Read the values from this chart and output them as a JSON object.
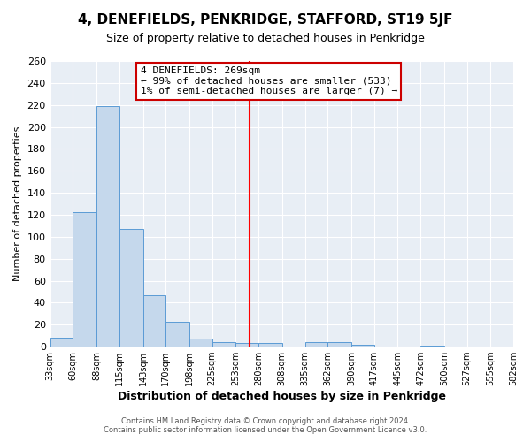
{
  "title": "4, DENEFIELDS, PENKRIDGE, STAFFORD, ST19 5JF",
  "subtitle": "Size of property relative to detached houses in Penkridge",
  "xlabel": "Distribution of detached houses by size in Penkridge",
  "ylabel": "Number of detached properties",
  "bar_vals_full": [
    8,
    122,
    219,
    107,
    47,
    23,
    7,
    4,
    3,
    3,
    0,
    4,
    4,
    2,
    0,
    0,
    1,
    0,
    0,
    0
  ],
  "bin_edges": [
    33,
    60,
    88,
    115,
    143,
    170,
    198,
    225,
    253,
    280,
    308,
    335,
    362,
    390,
    417,
    445,
    472,
    500,
    527,
    555,
    582
  ],
  "tick_labels": [
    "33sqm",
    "60sqm",
    "88sqm",
    "115sqm",
    "143sqm",
    "170sqm",
    "198sqm",
    "225sqm",
    "253sqm",
    "280sqm",
    "308sqm",
    "335sqm",
    "362sqm",
    "390sqm",
    "417sqm",
    "445sqm",
    "472sqm",
    "500sqm",
    "527sqm",
    "555sqm",
    "582sqm"
  ],
  "bar_color": "#c5d8ec",
  "bar_edge_color": "#5b9bd5",
  "red_line_x": 269,
  "ylim": [
    0,
    260
  ],
  "yticks": [
    0,
    20,
    40,
    60,
    80,
    100,
    120,
    140,
    160,
    180,
    200,
    220,
    240,
    260
  ],
  "annotation_title": "4 DENEFIELDS: 269sqm",
  "annotation_line1": "← 99% of detached houses are smaller (533)",
  "annotation_line2": "1% of semi-detached houses are larger (7) →",
  "footnote1": "Contains HM Land Registry data © Crown copyright and database right 2024.",
  "footnote2": "Contains public sector information licensed under the Open Government Licence v3.0.",
  "fig_bg_color": "#ffffff",
  "plot_bg_color": "#e8eef5",
  "grid_color": "#ffffff",
  "annotation_box_color": "#ffffff",
  "annotation_border_color": "#cc0000",
  "title_fontsize": 11,
  "subtitle_fontsize": 9,
  "xlabel_fontsize": 9,
  "ylabel_fontsize": 8,
  "tick_fontsize": 7,
  "ytick_fontsize": 8,
  "footnote_fontsize": 6,
  "annotation_fontsize": 8
}
